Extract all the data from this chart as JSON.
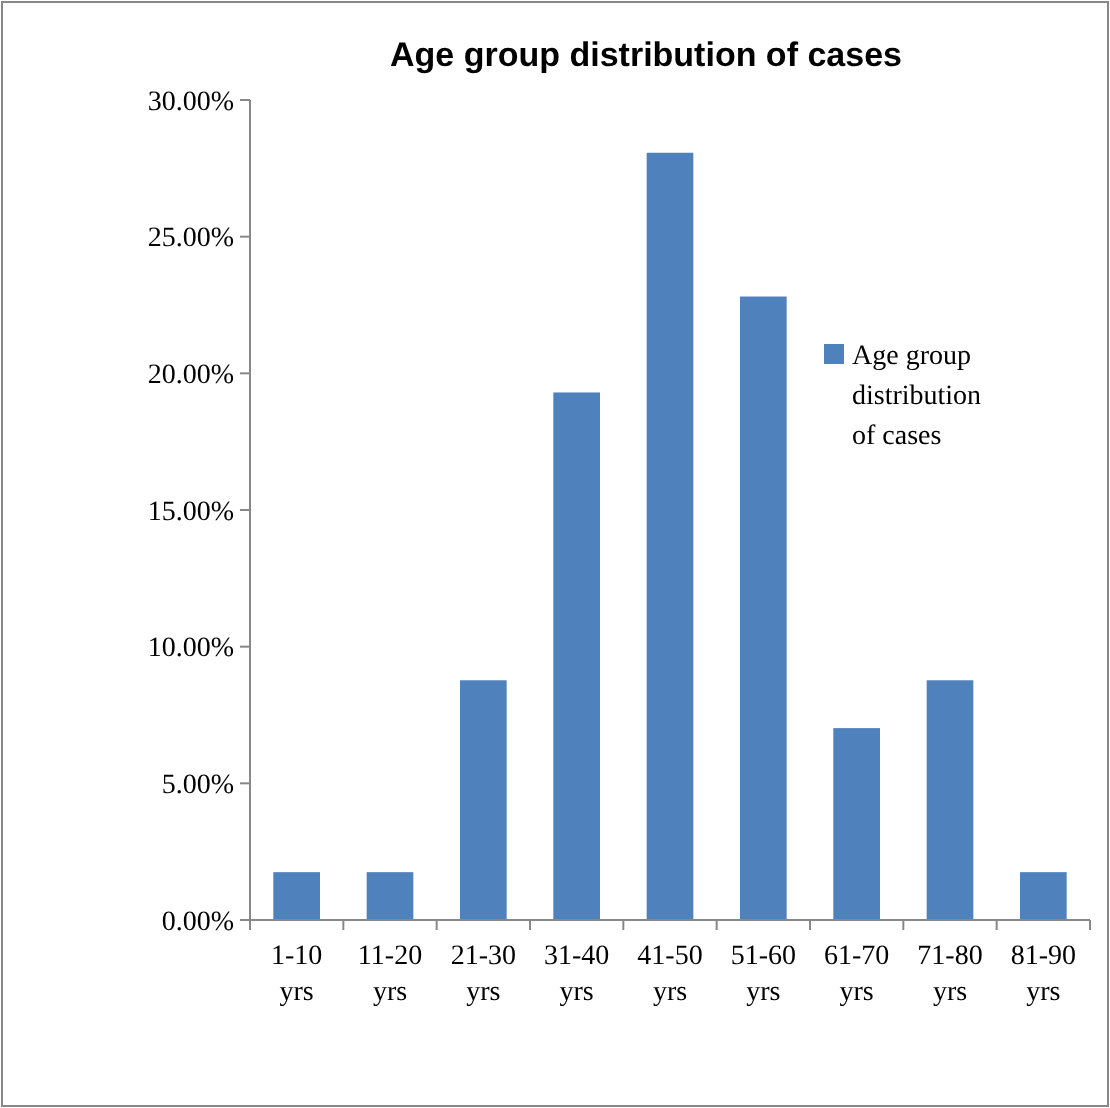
{
  "chart_data": {
    "type": "bar",
    "title": "Age group distribution of cases",
    "categories": [
      "1-10 yrs",
      "11-20 yrs",
      "21-30 yrs",
      "31-40 yrs",
      "41-50 yrs",
      "51-60 yrs",
      "61-70 yrs",
      "71-80 yrs",
      "81-90 yrs"
    ],
    "series": [
      {
        "name": "Age group distribution of cases",
        "color": "#4f81bd",
        "values": [
          1.75,
          1.75,
          8.77,
          19.3,
          28.07,
          22.81,
          7.02,
          8.77,
          1.75
        ]
      }
    ],
    "ylim": [
      0,
      30
    ],
    "yticks": [
      {
        "value": 0,
        "label": "0.00%"
      },
      {
        "value": 5,
        "label": "5.00%"
      },
      {
        "value": 10,
        "label": "10.00%"
      },
      {
        "value": 15,
        "label": "15.00%"
      },
      {
        "value": 20,
        "label": "20.00%"
      },
      {
        "value": 25,
        "label": "25.00%"
      },
      {
        "value": 30,
        "label": "30.00%"
      }
    ],
    "legend": "right",
    "grid": false
  }
}
